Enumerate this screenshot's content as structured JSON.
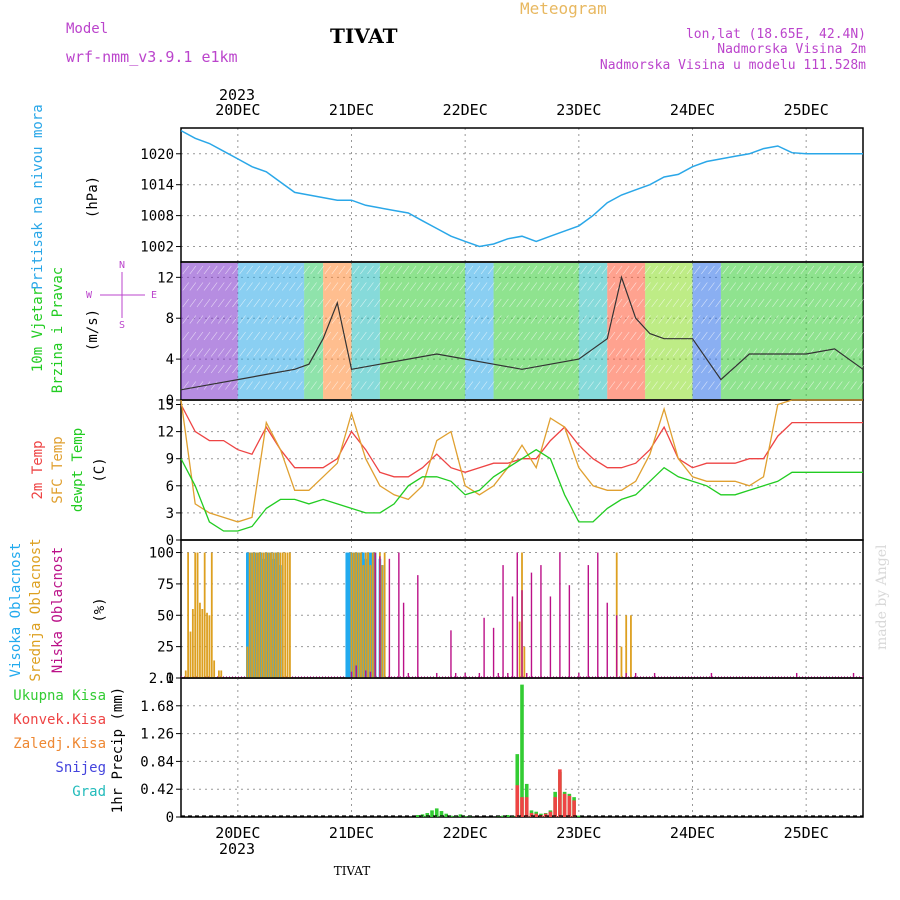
{
  "header": {
    "model_label": "Model",
    "model_name": "wrf-nmm_v3.9.1 e1km",
    "city": "TIVAT",
    "meteogram": "Meteogram",
    "lonlat": "lon,lat (18.65E, 42.4N)",
    "elev": "Nadmorska Visina 2m",
    "model_elev": "Nadmorska Visina u modelu 111.528m",
    "footer_city": "TIVAT",
    "watermark": "made by Angel"
  },
  "colors": {
    "pressure": "#2aa7e8",
    "temp2m": "#ee4444",
    "sfctemp": "#e0a030",
    "dewpt": "#22cc22",
    "high_cloud": "#22aaee",
    "mid_cloud": "#dda020",
    "low_cloud": "#bb1188",
    "total_precip": "#33cc33",
    "conv_precip": "#ee4444",
    "frozen": "#ee8833",
    "snow": "#4444dd",
    "hail": "#22bbbb",
    "grid": "#999999",
    "title_purple": "#bb44cc",
    "meteogram_orange": "#e8b860"
  },
  "chart_data": [
    {
      "type": "line",
      "panel": "pressure",
      "ylabel_main": "Pritisak na nivou mora",
      "ylabel_unit": "(hPa)",
      "top_axis": {
        "year": "2023",
        "days": [
          "20DEC",
          "21DEC",
          "22DEC",
          "23DEC",
          "24DEC",
          "25DEC"
        ]
      },
      "ylim": [
        999,
        1025
      ],
      "yticks": [
        1002,
        1008,
        1014,
        1020
      ],
      "x": [
        0,
        3,
        6,
        9,
        12,
        15,
        18,
        21,
        24,
        27,
        30,
        33,
        36,
        39,
        42,
        45,
        48,
        51,
        54,
        57,
        60,
        63,
        66,
        69,
        72,
        75,
        78,
        81,
        84,
        87,
        90,
        93,
        96,
        99,
        102,
        105,
        108,
        111,
        114,
        117,
        120,
        123,
        126,
        129,
        132,
        135,
        138,
        141,
        144
      ],
      "series": [
        {
          "values": [
            1024.5,
            1023,
            1022,
            1020.5,
            1019,
            1017.5,
            1016.5,
            1014.5,
            1012.5,
            1012,
            1011.5,
            1011,
            1011,
            1010,
            1009.5,
            1009,
            1008.5,
            1007,
            1005.5,
            1004,
            1003,
            1002,
            1002.5,
            1003.5,
            1004,
            1003,
            1004,
            1005,
            1006,
            1008,
            1010.5,
            1012,
            1013,
            1014,
            1015.5,
            1016,
            1017.5,
            1018.5,
            1019,
            1019.5,
            1020,
            1021,
            1021.5,
            1020.2,
            1020,
            1020,
            1020,
            1020,
            1020
          ]
        }
      ],
      "grid": true
    },
    {
      "type": "line",
      "panel": "wind",
      "ylabel_main": "10m Vjetar",
      "ylabel_main2": "Brzina i Pravac",
      "ylabel_unit": "(m/s)",
      "compass": {
        "n": "N",
        "w": "W",
        "e": "E",
        "s": "S"
      },
      "ylim": [
        0,
        13.5
      ],
      "yticks": [
        0,
        4,
        8,
        12
      ],
      "x": [
        0,
        6,
        12,
        18,
        24,
        27,
        30,
        33,
        36,
        42,
        48,
        54,
        60,
        66,
        72,
        78,
        84,
        90,
        93,
        96,
        99,
        102,
        108,
        114,
        120,
        126,
        132,
        138,
        144
      ],
      "series": [
        {
          "name": "speed",
          "values": [
            1,
            1.5,
            2,
            2.5,
            3,
            3.5,
            6,
            9.5,
            3,
            3.5,
            4,
            4.5,
            4,
            3.5,
            3,
            3.5,
            4,
            6,
            12,
            8,
            6.5,
            6,
            6,
            2,
            4.5,
            4.5,
            4.5,
            5,
            3
          ]
        }
      ],
      "grid": true
    },
    {
      "type": "line",
      "panel": "temperature",
      "ylabel_t2m": "2m Temp",
      "ylabel_sfc": "SFC Temp",
      "ylabel_dew": "dewpt Temp",
      "ylabel_unit": "(C)",
      "ylim": [
        0,
        15.5
      ],
      "yticks": [
        0,
        3,
        6,
        9,
        12,
        15
      ],
      "x": [
        0,
        3,
        6,
        9,
        12,
        15,
        18,
        21,
        24,
        27,
        30,
        33,
        36,
        39,
        42,
        45,
        48,
        51,
        54,
        57,
        60,
        63,
        66,
        69,
        72,
        75,
        78,
        81,
        84,
        87,
        90,
        93,
        96,
        99,
        102,
        105,
        108,
        111,
        114,
        117,
        120,
        123,
        126,
        129,
        132,
        135,
        138,
        141,
        144
      ],
      "series": [
        {
          "name": "2m Temp",
          "values": [
            15,
            12,
            11,
            11,
            10,
            9.5,
            12.5,
            10,
            8,
            8,
            8,
            9,
            12,
            10,
            7.5,
            7,
            7,
            8,
            9.5,
            8,
            7.5,
            8,
            8.5,
            8.5,
            9,
            9,
            11,
            12.5,
            10.5,
            9,
            8,
            8,
            8.5,
            10,
            12.5,
            9,
            8,
            8.5,
            8.5,
            8.5,
            9,
            9,
            11.5,
            13,
            13,
            13,
            13,
            13,
            13
          ]
        },
        {
          "name": "SFC Temp",
          "values": [
            15.5,
            4,
            3,
            2.5,
            2,
            2.5,
            13,
            10,
            5.5,
            5.5,
            7,
            8.5,
            14,
            9,
            6,
            5,
            4.5,
            6,
            11,
            12,
            6,
            5,
            6,
            8,
            10.5,
            8,
            13.5,
            12.5,
            8,
            6,
            5.5,
            5.5,
            6.5,
            9.5,
            14.5,
            9,
            7,
            6.5,
            6.5,
            6.5,
            6,
            7,
            15,
            15.5,
            15.5,
            15.5,
            15.5,
            15.5,
            15.5
          ]
        },
        {
          "name": "dewpt Temp",
          "values": [
            9,
            6,
            2,
            1,
            1,
            1.5,
            3.5,
            4.5,
            4.5,
            4,
            4.5,
            4,
            3.5,
            3,
            3,
            4,
            6,
            7,
            7,
            6.5,
            5,
            5.5,
            7,
            8,
            9,
            10,
            9,
            5,
            2,
            2,
            3.5,
            4.5,
            5,
            6.5,
            8,
            7,
            6.5,
            6,
            5,
            5,
            5.5,
            6,
            6.5,
            7.5,
            7.5,
            7.5,
            7.5,
            7.5,
            7.5
          ]
        }
      ],
      "grid": true
    },
    {
      "type": "bar",
      "panel": "clouds",
      "ylabel_high": "Visoka Oblacnost",
      "ylabel_mid": "Srednja Oblacnost",
      "ylabel_low": "Niska Oblacnost",
      "ylabel_unit": "(%)",
      "ylim": [
        0,
        100
      ],
      "yticks": [
        0,
        25,
        50,
        75,
        100
      ],
      "series": [
        {
          "name": "Visoka Oblacnost",
          "x": [
            14,
            14.5,
            15,
            15.5,
            16,
            16.5,
            17,
            17.5,
            18,
            18.5,
            19,
            19.5,
            20,
            20.5,
            21,
            35,
            35.5,
            36,
            36.5,
            37,
            37.5,
            38,
            38.5,
            39,
            39.5,
            40,
            40.5,
            41,
            42,
            42.5
          ],
          "values": [
            100,
            100,
            100,
            100,
            100,
            100,
            100,
            95,
            100,
            100,
            100,
            95,
            100,
            100,
            90,
            100,
            100,
            100,
            100,
            100,
            100,
            100,
            100,
            95,
            100,
            100,
            100,
            100,
            95,
            90
          ]
        },
        {
          "name": "Srednja Oblacnost",
          "x": [
            1,
            1.5,
            2,
            2.5,
            3,
            3.5,
            4,
            4.5,
            5,
            5.5,
            6,
            6.5,
            7,
            8,
            8.5,
            14,
            14.5,
            15,
            15.5,
            16,
            16.5,
            17,
            17.5,
            18,
            18.5,
            19,
            19.5,
            20,
            20.5,
            21,
            21.5,
            22,
            22.5,
            23,
            36,
            36.5,
            37,
            37.5,
            38,
            38.5,
            39,
            39.5,
            40,
            40.5,
            41,
            42,
            42.5,
            43,
            71.5,
            72,
            72.5,
            92,
            93,
            94,
            95
          ],
          "values": [
            6,
            100,
            37,
            55,
            100,
            100,
            60,
            55,
            100,
            52,
            50,
            100,
            14,
            6,
            6,
            25,
            100,
            100,
            100,
            100,
            100,
            100,
            100,
            100,
            100,
            100,
            100,
            100,
            100,
            100,
            100,
            100,
            100,
            100,
            100,
            100,
            100,
            100,
            100,
            90,
            100,
            100,
            90,
            100,
            100,
            100,
            90,
            100,
            45,
            100,
            25,
            100,
            25,
            50,
            50
          ]
        },
        {
          "name": "Niska Oblacnost",
          "x": [
            36,
            37,
            39,
            40,
            41,
            42,
            44,
            46,
            47,
            48,
            50,
            54,
            57,
            58,
            60,
            63,
            64,
            66,
            67,
            68,
            69,
            70,
            71,
            72,
            73,
            74,
            76,
            78,
            80,
            82,
            84,
            86,
            88,
            90,
            92,
            94,
            96,
            100,
            112,
            130,
            142
          ],
          "values": [
            5,
            10,
            6,
            5,
            100,
            97,
            95,
            100,
            60,
            4,
            82,
            4,
            38,
            4,
            4,
            4,
            48,
            40,
            4,
            90,
            4,
            65,
            100,
            70,
            4,
            84,
            90,
            65,
            100,
            74,
            4,
            90,
            100,
            60,
            50,
            4,
            4,
            4,
            4,
            4,
            4
          ]
        }
      ],
      "grid": true
    },
    {
      "type": "bar",
      "panel": "precip",
      "legend": [
        "Ukupna Kisa",
        "Konvek.Kisa",
        "Zaledj.Kisa",
        "Snijeg",
        "Grad"
      ],
      "ylabel_unit": "1hr Precip (mm)",
      "ylim": [
        0,
        2.1
      ],
      "yticks": [
        0,
        0.42,
        0.84,
        1.26,
        1.68,
        2.1
      ],
      "bottom_axis": {
        "year": "2023",
        "days": [
          "20DEC",
          "21DEC",
          "22DEC",
          "23DEC",
          "24DEC",
          "25DEC"
        ]
      },
      "series": [
        {
          "name": "Ukupna Kisa",
          "x": [
            50,
            51,
            52,
            53,
            54,
            55,
            56,
            57,
            58,
            59,
            60,
            61,
            67,
            68,
            69,
            70,
            71,
            72,
            73,
            74,
            75,
            76,
            77,
            78,
            79,
            80,
            81,
            82,
            83,
            84
          ],
          "values": [
            0.03,
            0.04,
            0.06,
            0.1,
            0.13,
            0.09,
            0.05,
            0.02,
            0.02,
            0.04,
            0.01,
            0.01,
            0.01,
            0.02,
            0.03,
            0.02,
            0.95,
            2.0,
            0.5,
            0.1,
            0.08,
            0.05,
            0.06,
            0.1,
            0.38,
            0.68,
            0.38,
            0.35,
            0.3,
            0.02
          ]
        },
        {
          "name": "Konvek.Kisa",
          "x": [
            71,
            72,
            73,
            74,
            75,
            76,
            77,
            78,
            79,
            80,
            81,
            82,
            83
          ],
          "values": [
            0.48,
            0.3,
            0.3,
            0.06,
            0.05,
            0.03,
            0.05,
            0.08,
            0.3,
            0.72,
            0.35,
            0.32,
            0.25
          ]
        }
      ],
      "grid": true
    }
  ]
}
